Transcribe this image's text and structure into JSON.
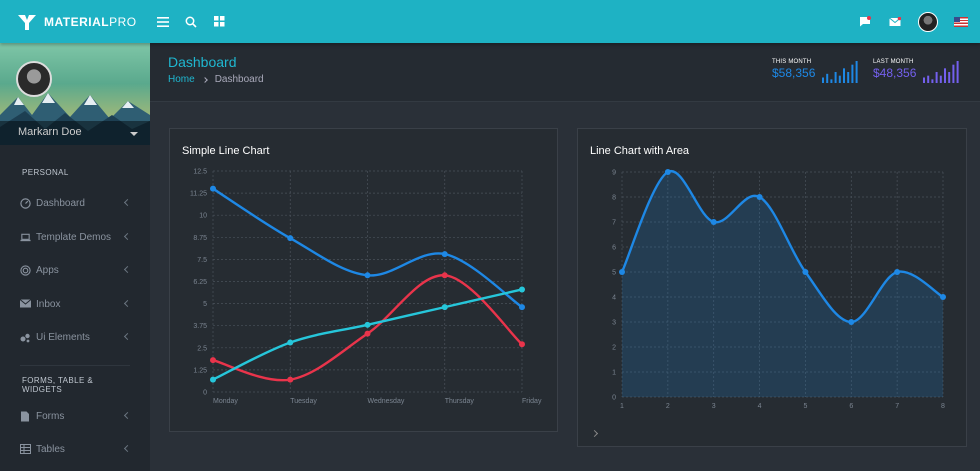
{
  "brand": {
    "name_bold": "MATERIAL",
    "name_light": "PRO"
  },
  "topbar": {
    "icons": [
      "menu-icon",
      "search-icon",
      "grid-icon"
    ],
    "right_icons": [
      "message-icon",
      "mail-icon",
      "user-avatar",
      "us-flag-icon"
    ]
  },
  "sidebar": {
    "profile_name": "Markarn Doe",
    "sections": [
      {
        "caption": "PERSONAL",
        "items": [
          {
            "label": "Dashboard",
            "icon": "gauge-icon"
          },
          {
            "label": "Template Demos",
            "icon": "laptop-icon"
          },
          {
            "label": "Apps",
            "icon": "target-icon"
          },
          {
            "label": "Inbox",
            "icon": "mail-icon"
          },
          {
            "label": "Ui Elements",
            "icon": "bubbles-icon"
          }
        ]
      },
      {
        "caption": "FORMS, TABLE & WIDGETS",
        "items": [
          {
            "label": "Forms",
            "icon": "file-icon"
          },
          {
            "label": "Tables",
            "icon": "table-icon"
          }
        ]
      }
    ]
  },
  "header": {
    "title": "Dashboard",
    "breadcrumb_home": "Home",
    "breadcrumb_current": "Dashboard"
  },
  "stats": [
    {
      "label": "THIS MONTH",
      "value": "$58,356",
      "color": "#1e88e5",
      "bars": [
        3,
        5,
        2,
        6,
        4,
        8,
        6,
        10,
        12
      ]
    },
    {
      "label": "LAST MONTH",
      "value": "$48,356",
      "color": "#7460ee",
      "bars": [
        3,
        4,
        2,
        6,
        4,
        8,
        6,
        10,
        12
      ]
    }
  ],
  "chart_data": [
    {
      "type": "line",
      "title": "Simple Line Chart",
      "categories": [
        "Monday",
        "Tuesday",
        "Wednesday",
        "Thursday",
        "Friday"
      ],
      "y_ticks": [
        "0",
        "1.25",
        "2.5",
        "3.75",
        "5",
        "6.25",
        "7.5",
        "8.75",
        "10",
        "11.25",
        "12.5"
      ],
      "ylim": [
        0,
        12.5
      ],
      "grid": true,
      "series": [
        {
          "color": "#1e88e5",
          "values": [
            11.5,
            8.7,
            6.6,
            7.8,
            4.8
          ]
        },
        {
          "color": "#e9344b",
          "values": [
            1.8,
            0.7,
            3.3,
            6.6,
            2.7
          ]
        },
        {
          "color": "#26c6da",
          "values": [
            0.7,
            2.8,
            3.8,
            4.8,
            5.8
          ]
        }
      ]
    },
    {
      "type": "area",
      "title": "Line Chart with Area",
      "categories": [
        "1",
        "2",
        "3",
        "4",
        "5",
        "6",
        "7",
        "8"
      ],
      "y_ticks": [
        "0",
        "1",
        "2",
        "3",
        "4",
        "5",
        "6",
        "7",
        "8",
        "9"
      ],
      "ylim": [
        0,
        9
      ],
      "grid": true,
      "series": [
        {
          "color": "#1e88e5",
          "values": [
            5,
            9,
            7,
            8,
            5,
            3,
            5,
            4
          ]
        }
      ]
    }
  ]
}
